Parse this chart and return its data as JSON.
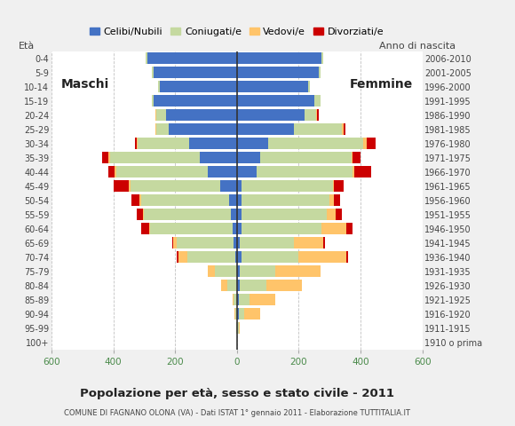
{
  "age_groups": [
    "100+",
    "95-99",
    "90-94",
    "85-89",
    "80-84",
    "75-79",
    "70-74",
    "65-69",
    "60-64",
    "55-59",
    "50-54",
    "45-49",
    "40-44",
    "35-39",
    "30-34",
    "25-29",
    "20-24",
    "15-19",
    "10-14",
    "5-9",
    "0-4"
  ],
  "birth_years": [
    "1910 o prima",
    "1911-1915",
    "1916-1920",
    "1921-1925",
    "1926-1930",
    "1931-1935",
    "1936-1940",
    "1941-1945",
    "1946-1950",
    "1951-1955",
    "1956-1960",
    "1961-1965",
    "1966-1970",
    "1971-1975",
    "1976-1980",
    "1981-1985",
    "1986-1990",
    "1991-1995",
    "1996-2000",
    "2001-2005",
    "2006-2010"
  ],
  "male_celibi": [
    0,
    0,
    0,
    0,
    0,
    0,
    5,
    10,
    15,
    20,
    25,
    55,
    95,
    120,
    155,
    220,
    230,
    270,
    250,
    270,
    290
  ],
  "male_coniugati": [
    0,
    2,
    5,
    10,
    30,
    70,
    155,
    185,
    265,
    280,
    285,
    290,
    295,
    290,
    165,
    40,
    30,
    5,
    5,
    5,
    5
  ],
  "male_vedovi": [
    0,
    0,
    2,
    5,
    20,
    25,
    30,
    10,
    5,
    5,
    5,
    5,
    5,
    5,
    5,
    5,
    5,
    0,
    0,
    0,
    0
  ],
  "male_divorziati": [
    0,
    0,
    0,
    0,
    0,
    0,
    5,
    5,
    25,
    20,
    25,
    50,
    20,
    20,
    5,
    0,
    0,
    0,
    0,
    0,
    0
  ],
  "female_nubili": [
    0,
    0,
    5,
    5,
    10,
    10,
    15,
    10,
    15,
    15,
    15,
    15,
    65,
    75,
    100,
    185,
    220,
    250,
    230,
    265,
    275
  ],
  "female_coniugate": [
    0,
    5,
    20,
    35,
    85,
    115,
    185,
    175,
    260,
    275,
    285,
    295,
    310,
    295,
    310,
    155,
    35,
    20,
    5,
    5,
    5
  ],
  "female_vedove": [
    0,
    5,
    50,
    85,
    115,
    145,
    155,
    95,
    80,
    30,
    15,
    5,
    5,
    5,
    10,
    5,
    5,
    0,
    0,
    0,
    0
  ],
  "female_divorziate": [
    0,
    0,
    0,
    0,
    0,
    0,
    5,
    5,
    20,
    20,
    20,
    30,
    55,
    25,
    30,
    5,
    5,
    0,
    0,
    0,
    0
  ],
  "color_celibi": "#4472c4",
  "color_coniugati": "#c5d9a0",
  "color_vedovi": "#ffc46a",
  "color_divorziati": "#cc0000",
  "legend_labels": [
    "Celibi/Nubili",
    "Coniugati/e",
    "Vedovi/e",
    "Divorziati/e"
  ],
  "title": "Popolazione per età, sesso e stato civile - 2011",
  "subtitle": "COMUNE DI FAGNANO OLONA (VA) - Dati ISTAT 1° gennaio 2011 - Elaborazione TUTTITALIA.IT",
  "xlim": 600,
  "bg_color": "#f0f0f0",
  "plot_bg": "#ffffff"
}
